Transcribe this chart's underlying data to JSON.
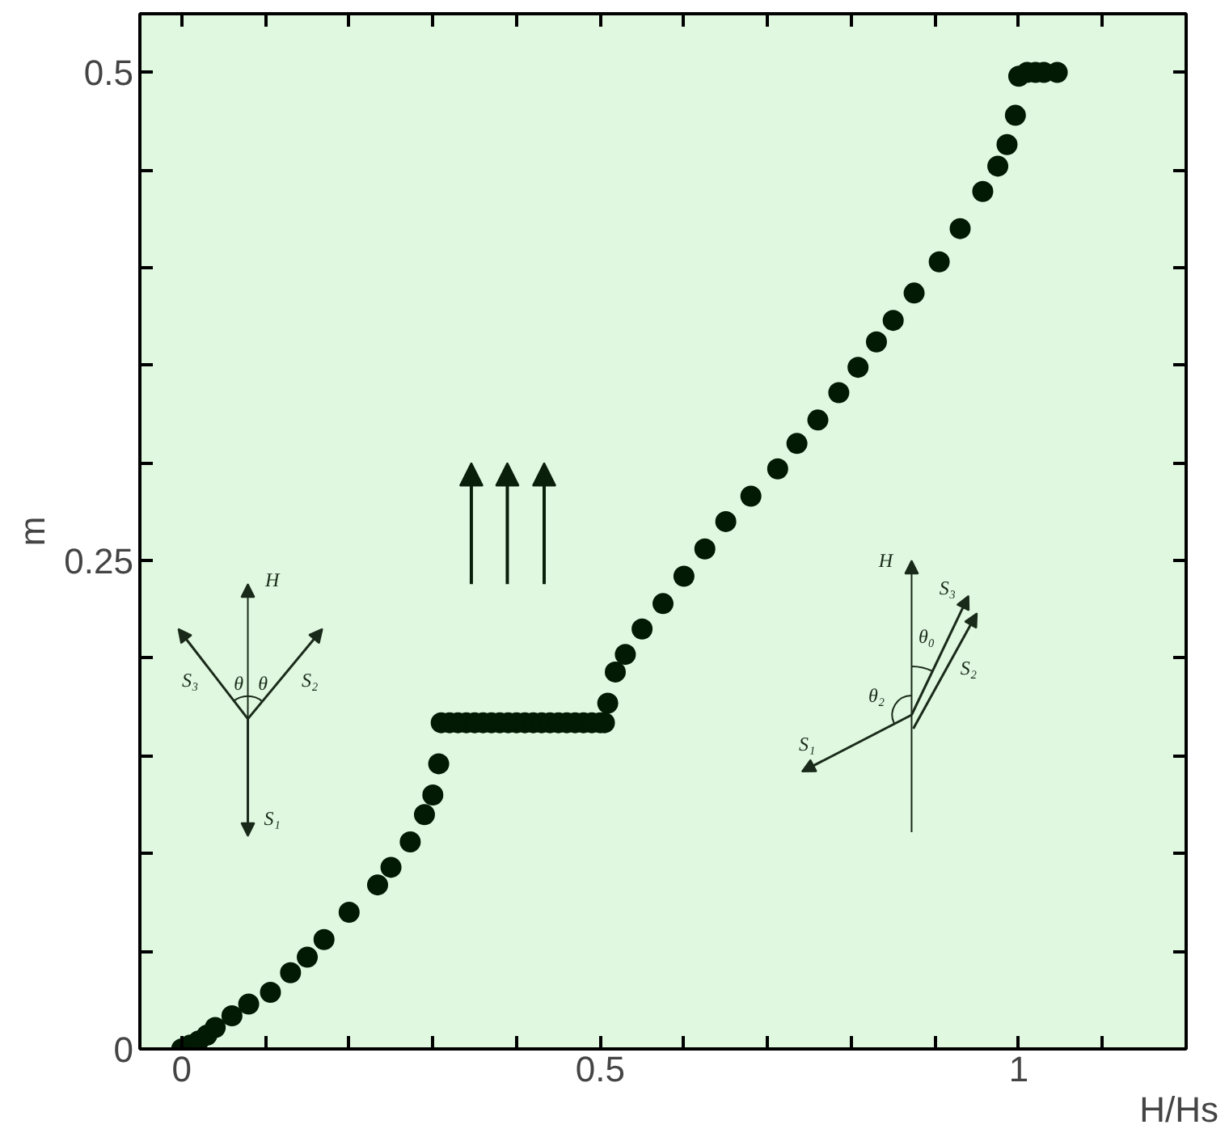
{
  "chart_data": {
    "type": "scatter",
    "xlabel": "H/Hs",
    "ylabel": "m",
    "x": [
      0,
      0.01,
      0.02,
      0.03,
      0.04,
      0.06,
      0.08,
      0.106,
      0.13,
      0.15,
      0.17,
      0.2,
      0.234,
      0.25,
      0.273,
      0.29,
      0.3,
      0.307,
      0.31,
      0.32,
      0.33,
      0.34,
      0.35,
      0.36,
      0.37,
      0.38,
      0.39,
      0.4,
      0.41,
      0.42,
      0.43,
      0.44,
      0.45,
      0.46,
      0.47,
      0.48,
      0.49,
      0.5,
      0.505,
      0.509,
      0.518,
      0.53,
      0.55,
      0.575,
      0.6,
      0.625,
      0.65,
      0.68,
      0.712,
      0.735,
      0.76,
      0.785,
      0.808,
      0.83,
      0.85,
      0.875,
      0.905,
      0.93,
      0.957,
      0.975,
      0.986,
      0.996,
      1.0,
      1.01,
      1.02,
      1.03,
      1.046
    ],
    "series": [
      {
        "color": "#021a04",
        "values": [
          0,
          0.002,
          0.004,
          0.007,
          0.011,
          0.017,
          0.023,
          0.029,
          0.039,
          0.047,
          0.056,
          0.07,
          0.084,
          0.093,
          0.106,
          0.12,
          0.13,
          0.146,
          0.167,
          0.167,
          0.167,
          0.167,
          0.167,
          0.167,
          0.167,
          0.167,
          0.167,
          0.167,
          0.167,
          0.167,
          0.167,
          0.167,
          0.167,
          0.167,
          0.167,
          0.167,
          0.167,
          0.167,
          0.167,
          0.177,
          0.193,
          0.202,
          0.215,
          0.228,
          0.242,
          0.256,
          0.27,
          0.283,
          0.297,
          0.31,
          0.322,
          0.336,
          0.349,
          0.362,
          0.373,
          0.387,
          0.403,
          0.42,
          0.439,
          0.452,
          0.463,
          0.478,
          0.498,
          0.5,
          0.5,
          0.5,
          0.5
        ]
      }
    ],
    "marker": "circle",
    "xlim": [
      -0.05,
      1.2
    ],
    "ylim": [
      0,
      0.53
    ],
    "xticks": [
      0,
      {
        "value": 0.1,
        "label": null
      },
      {
        "value": 0.2,
        "label": null
      },
      {
        "value": 0.3,
        "label": null
      },
      {
        "value": 0.4,
        "label": null
      },
      0.5,
      {
        "value": 0.6,
        "label": null
      },
      {
        "value": 0.7,
        "label": null
      },
      {
        "value": 0.8,
        "label": null
      },
      {
        "value": 0.9,
        "label": null
      },
      1,
      {
        "value": 1.1,
        "label": null
      }
    ],
    "yticks": [
      0,
      {
        "value": 0.05,
        "label": null
      },
      {
        "value": 0.1,
        "label": null
      },
      {
        "value": 0.15,
        "label": null
      },
      {
        "value": 0.2,
        "label": null
      },
      0.25,
      {
        "value": 0.3,
        "label": null
      },
      {
        "value": 0.35,
        "label": null
      },
      {
        "value": 0.4,
        "label": null
      },
      {
        "value": 0.45,
        "label": null
      },
      0.5
    ],
    "grid": false,
    "annotations": [
      "H",
      "S₃",
      "θ",
      "θ",
      "S₂",
      "S₁",
      "H",
      "S₃",
      "θ₀",
      "S₂",
      "θ₂",
      "S₁"
    ]
  }
}
